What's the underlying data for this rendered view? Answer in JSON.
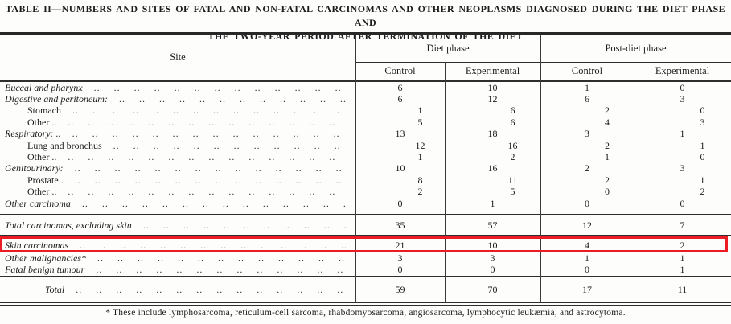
{
  "title": {
    "line1": "TABLE II—NUMBERS AND SITES OF FATAL AND NON-FATAL CARCINOMAS AND OTHER NEOPLASMS DIAGNOSED DURING THE DIET PHASE AND",
    "line2": "THE TWO-YEAR PERIOD AFTER TERMINATION OF THE DIET"
  },
  "header": {
    "site_label": "Site",
    "groups": [
      {
        "label": "Diet phase",
        "columns": [
          "Control",
          "Experimental"
        ]
      },
      {
        "label": "Post-diet phase",
        "columns": [
          "Control",
          "Experimental"
        ]
      }
    ]
  },
  "rows": [
    {
      "label": "Buccal and pharynx",
      "type": "category",
      "values": [
        "6",
        "10",
        "1",
        "0"
      ]
    },
    {
      "label": "Digestive and peritoneum:",
      "type": "category",
      "values": [
        "6",
        "12",
        "6",
        "3"
      ]
    },
    {
      "label": "Stomach",
      "type": "subitem",
      "values": [
        "1",
        "6",
        "2",
        "0"
      ]
    },
    {
      "label": "Other ..",
      "type": "subitem",
      "values": [
        "5",
        "6",
        "4",
        "3"
      ]
    },
    {
      "label": "Respiratory: ..",
      "type": "category",
      "values": [
        "13",
        "18",
        "3",
        "1"
      ]
    },
    {
      "label": "Lung and bronchus",
      "type": "subitem",
      "values": [
        "12",
        "16",
        "2",
        "1"
      ]
    },
    {
      "label": "Other ..",
      "type": "subitem",
      "values": [
        "1",
        "2",
        "1",
        "0"
      ]
    },
    {
      "label": "Genitourinary:",
      "type": "category",
      "values": [
        "10",
        "16",
        "2",
        "3"
      ]
    },
    {
      "label": "Prostate..",
      "type": "subitem",
      "values": [
        "8",
        "11",
        "2",
        "1"
      ]
    },
    {
      "label": "Other ..",
      "type": "subitem",
      "values": [
        "2",
        "5",
        "0",
        "2"
      ]
    },
    {
      "label": "Other carcinoma",
      "type": "category",
      "values": [
        "0",
        "1",
        "0",
        "0"
      ]
    }
  ],
  "summary": {
    "total_carcinomas": {
      "label": "Total carcinomas, excluding skin",
      "type": "category",
      "values": [
        "35",
        "57",
        "12",
        "7"
      ]
    },
    "skin": {
      "label": "Skin carcinomas",
      "type": "category",
      "values": [
        "21",
        "10",
        "4",
        "2"
      ],
      "highlighted": true
    },
    "other_malignancies": {
      "label": "Other malignancies*",
      "type": "category",
      "values": [
        "3",
        "3",
        "1",
        "1"
      ]
    },
    "fatal_benign": {
      "label": "Fatal benign tumour",
      "type": "category",
      "values": [
        "0",
        "0",
        "0",
        "1"
      ]
    },
    "grand_total": {
      "label": "Total",
      "type": "category",
      "values": [
        "59",
        "70",
        "17",
        "11"
      ]
    }
  },
  "annotation": {
    "highlight_color": "#ed1c24"
  },
  "footnote": "* These include lymphosarcoma, reticulum-cell sarcoma, rhabdomyosarcoma, angiosarcoma, lymphocytic leukæmia, and astrocytoma."
}
